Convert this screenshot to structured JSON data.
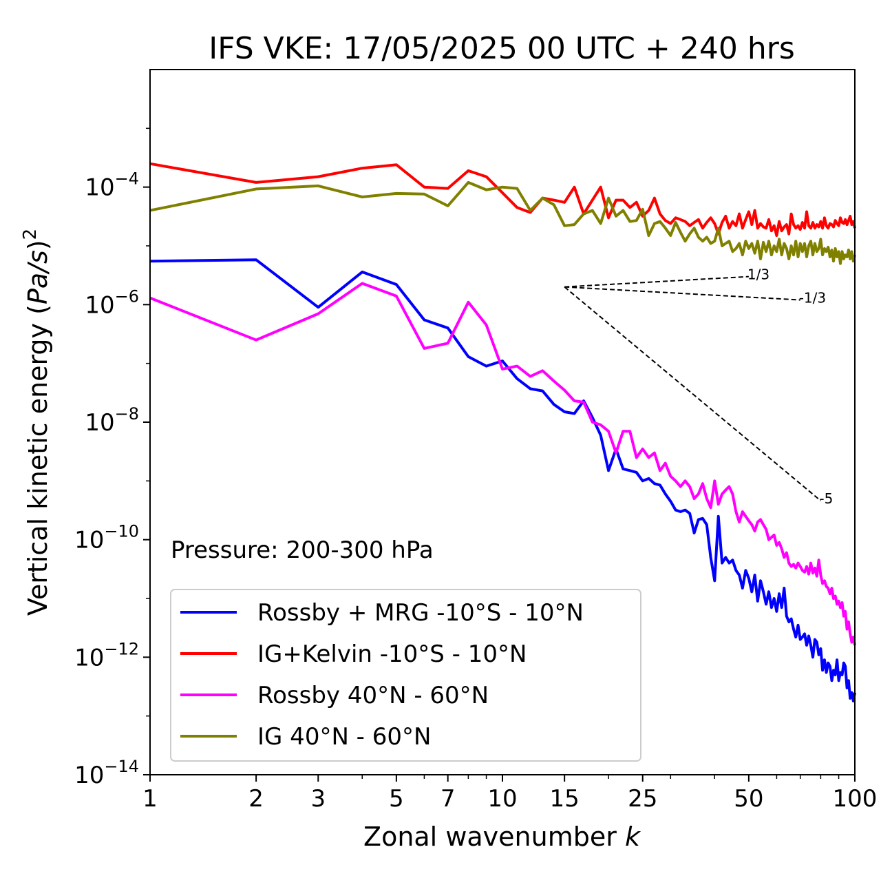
{
  "chart_data": {
    "type": "line",
    "title": "IFS VKE: 17/05/2025 00 UTC + 240 hrs",
    "xlabel": "Zonal wavenumber ",
    "xlabel_var": "k",
    "ylabel_main": "Vertical kinetic energy (",
    "ylabel_var": "Pa/s",
    "ylabel_close": ")",
    "ylabel_exp": "2",
    "x_scale": "log",
    "y_scale": "log",
    "xlim": [
      1,
      100
    ],
    "ylim": [
      1e-14,
      0.01
    ],
    "x_ticks": [
      1,
      2,
      3,
      5,
      7,
      10,
      15,
      25,
      50,
      100
    ],
    "x_tick_labels": [
      "1",
      "2",
      "3",
      "5",
      "7",
      "10",
      "15",
      "25",
      "50",
      "100"
    ],
    "y_ticks": [
      -4,
      -6,
      -8,
      -10,
      -12,
      -14
    ],
    "y_tick_base": "10",
    "y_tick_exps": [
      "−4",
      "−6",
      "−8",
      "−10",
      "−12",
      "−14"
    ],
    "grid": false,
    "legend_position": "bottom-left",
    "annotation": "Pressure: 200-300 hPa",
    "series": [
      {
        "name": "Rossby + MRG -10°S - 10°N",
        "color": "#0000ff",
        "x": [
          1,
          2,
          3,
          4,
          5,
          6,
          7,
          8,
          9,
          10,
          11,
          12,
          13,
          14,
          15,
          16,
          17,
          18,
          19,
          20,
          21,
          22,
          23,
          24,
          25,
          26,
          27,
          28,
          29,
          30,
          31,
          32,
          33,
          34,
          35,
          36,
          37,
          38,
          39,
          40,
          41,
          42,
          43,
          44,
          45,
          46,
          47,
          48,
          49,
          50,
          51,
          52,
          53,
          54,
          55,
          56,
          57,
          58,
          59,
          60,
          61,
          62,
          63,
          64,
          65,
          66,
          67,
          68,
          69,
          70,
          71,
          72,
          73,
          74,
          75,
          76,
          77,
          78,
          79,
          80,
          81,
          82,
          83,
          84,
          85,
          86,
          87,
          88,
          89,
          90,
          91,
          92,
          93,
          94,
          95,
          96,
          97,
          98,
          99,
          100
        ],
        "y": [
          5.5e-06,
          5.8e-06,
          9e-07,
          3.6e-06,
          2.2e-06,
          5.5e-07,
          4e-07,
          1.3e-07,
          9e-08,
          1.1e-07,
          5.5e-08,
          3.7e-08,
          3.4e-08,
          2e-08,
          1.5e-08,
          1.4e-08,
          2.3e-08,
          1.2e-08,
          6e-09,
          1.5e-09,
          3.5e-09,
          1.6e-09,
          1.5e-09,
          1.4e-09,
          1e-09,
          1.1e-09,
          9e-10,
          8.5e-10,
          6e-10,
          4.5e-10,
          3.2e-10,
          3e-10,
          3.2e-10,
          2.8e-10,
          1.3e-10,
          2.2e-10,
          2.3e-10,
          1.8e-10,
          5e-11,
          2e-11,
          2.5e-10,
          4e-11,
          5e-11,
          4e-11,
          4.5e-11,
          3e-11,
          2.5e-11,
          1.5e-11,
          3e-11,
          2.2e-11,
          1.3e-11,
          2.5e-11,
          9e-12,
          2e-11,
          1.3e-11,
          8e-12,
          1.3e-11,
          7e-12,
          1e-11,
          6e-12,
          1.2e-11,
          7e-12,
          1.5e-11,
          5e-12,
          4e-12,
          4.5e-12,
          3e-12,
          2.2e-12,
          3.5e-12,
          2e-12,
          2.2e-12,
          2.5e-12,
          1.6e-12,
          2.3e-12,
          1.6e-12,
          1e-12,
          2e-12,
          1.8e-12,
          1.1e-12,
          1.4e-12,
          6e-13,
          9e-13,
          5.5e-13,
          8e-13,
          7e-13,
          4e-13,
          6e-13,
          5e-13,
          9e-13,
          4e-13,
          5.5e-13,
          5e-13,
          8e-13,
          7e-13,
          3e-13,
          4e-13,
          2e-13,
          2.5e-13,
          1.8e-13,
          2.5e-13
        ]
      },
      {
        "name": "IG+Kelvin -10°S - 10°N",
        "color": "#ff0000",
        "x": [
          1,
          2,
          3,
          4,
          5,
          6,
          7,
          8,
          9,
          10,
          11,
          12,
          13,
          14,
          15,
          16,
          17,
          18,
          19,
          20,
          21,
          22,
          23,
          24,
          25,
          26,
          27,
          28,
          29,
          30,
          31,
          32,
          33,
          34,
          35,
          36,
          37,
          38,
          39,
          40,
          41,
          42,
          43,
          44,
          45,
          46,
          47,
          48,
          49,
          50,
          51,
          52,
          53,
          54,
          55,
          56,
          57,
          58,
          59,
          60,
          61,
          62,
          63,
          64,
          65,
          66,
          67,
          68,
          69,
          70,
          71,
          72,
          73,
          74,
          75,
          76,
          77,
          78,
          79,
          80,
          81,
          82,
          83,
          84,
          85,
          86,
          87,
          88,
          89,
          90,
          91,
          92,
          93,
          94,
          95,
          96,
          97,
          98,
          99,
          100
        ],
        "y": [
          0.00025,
          0.00012,
          0.00015,
          0.00021,
          0.00024,
          0.0001,
          9.5e-05,
          0.00019,
          0.00015,
          8e-05,
          4.5e-05,
          3.7e-05,
          6.5e-05,
          6e-05,
          5.5e-05,
          0.0001,
          3.5e-05,
          6e-05,
          0.0001,
          3e-05,
          6e-05,
          6e-05,
          4.5e-05,
          5.5e-05,
          3.2e-05,
          4e-05,
          6.5e-05,
          3.5e-05,
          2.7e-05,
          2.4e-05,
          3e-05,
          2.8e-05,
          2.6e-05,
          2.2e-05,
          2.5e-05,
          2.8e-05,
          2e-05,
          2.5e-05,
          3e-05,
          2.4e-05,
          1.6e-05,
          2.5e-05,
          3.2e-05,
          2e-05,
          2.6e-05,
          2.2e-05,
          3.5e-05,
          2e-05,
          2.8e-05,
          3.8e-05,
          2.3e-05,
          4e-05,
          2e-05,
          2.4e-05,
          2.1e-05,
          2e-05,
          2.8e-05,
          1.8e-05,
          2.2e-05,
          1.5e-05,
          2.6e-05,
          1.8e-05,
          2.1e-05,
          2.3e-05,
          1.6e-05,
          3.5e-05,
          2.3e-05,
          2e-05,
          2.2e-05,
          1.9e-05,
          2.5e-05,
          2e-05,
          3.8e-05,
          2.2e-05,
          2e-05,
          2.5e-05,
          2e-05,
          2.3e-05,
          2.1e-05,
          2.6e-05,
          2e-05,
          3e-05,
          2.2e-05,
          2e-05,
          2.4e-05,
          2.3e-05,
          2.1e-05,
          2.7e-05,
          2.4e-05,
          2.2e-05,
          3e-05,
          2.5e-05,
          2.4e-05,
          2.8e-05,
          2.3e-05,
          2.7e-05,
          3.2e-05,
          2.3e-05,
          2.6e-05,
          2e-05
        ]
      },
      {
        "name": "Rossby 40°N - 60°N",
        "color": "#ff00ff",
        "x": [
          1,
          2,
          3,
          4,
          5,
          6,
          7,
          8,
          9,
          10,
          11,
          12,
          13,
          14,
          15,
          16,
          17,
          18,
          19,
          20,
          21,
          22,
          23,
          24,
          25,
          26,
          27,
          28,
          29,
          30,
          31,
          32,
          33,
          34,
          35,
          36,
          37,
          38,
          39,
          40,
          41,
          42,
          43,
          44,
          45,
          46,
          47,
          48,
          49,
          50,
          51,
          52,
          53,
          54,
          55,
          56,
          57,
          58,
          59,
          60,
          61,
          62,
          63,
          64,
          65,
          66,
          67,
          68,
          69,
          70,
          71,
          72,
          73,
          74,
          75,
          76,
          77,
          78,
          79,
          80,
          81,
          82,
          83,
          84,
          85,
          86,
          87,
          88,
          89,
          90,
          91,
          92,
          93,
          94,
          95,
          96,
          97,
          98,
          99,
          100
        ],
        "y": [
          1.3e-06,
          2.5e-07,
          7e-07,
          2.3e-06,
          1.4e-06,
          1.8e-07,
          2.2e-07,
          1.1e-06,
          4.5e-07,
          8e-08,
          9e-08,
          6e-08,
          7.5e-08,
          5e-08,
          3.5e-08,
          2.3e-08,
          2.2e-08,
          1e-08,
          9e-09,
          7e-09,
          3e-09,
          7e-09,
          7e-09,
          2.5e-09,
          3.5e-09,
          2.5e-09,
          3e-09,
          1.5e-09,
          2e-09,
          1.2e-09,
          1e-09,
          8e-10,
          1e-09,
          8e-10,
          5e-10,
          6e-10,
          9e-10,
          5e-10,
          3.5e-10,
          1e-09,
          4e-10,
          6e-10,
          7e-10,
          8e-10,
          6e-10,
          3e-10,
          2e-10,
          3e-10,
          2.5e-10,
          2.1e-10,
          1.8e-10,
          1.4e-10,
          2e-10,
          2.2e-10,
          1.8e-10,
          1.5e-10,
          1e-10,
          1.1e-10,
          1.2e-10,
          8e-11,
          9e-11,
          7e-11,
          5e-11,
          6e-11,
          4e-11,
          3.5e-11,
          3.8e-11,
          3.3e-11,
          4e-11,
          3.5e-11,
          3e-11,
          2.8e-11,
          3.5e-11,
          2.6e-11,
          4e-11,
          2.7e-11,
          3.3e-11,
          2.4e-11,
          4.5e-11,
          2.5e-11,
          1.8e-11,
          2e-11,
          1.6e-11,
          1.5e-11,
          1.2e-11,
          1.5e-11,
          1e-11,
          1.1e-11,
          8e-12,
          9e-12,
          7e-12,
          8.5e-12,
          5e-12,
          6e-12,
          3e-12,
          4e-12,
          2.5e-12,
          1.8e-12,
          2.2e-12,
          1.6e-12
        ]
      },
      {
        "name": "IG 40°N - 60°N",
        "color": "#808000",
        "x": [
          1,
          2,
          3,
          4,
          5,
          6,
          7,
          8,
          9,
          10,
          11,
          12,
          13,
          14,
          15,
          16,
          17,
          18,
          19,
          20,
          21,
          22,
          23,
          24,
          25,
          26,
          27,
          28,
          29,
          30,
          31,
          32,
          33,
          34,
          35,
          36,
          37,
          38,
          39,
          40,
          41,
          42,
          43,
          44,
          45,
          46,
          47,
          48,
          49,
          50,
          51,
          52,
          53,
          54,
          55,
          56,
          57,
          58,
          59,
          60,
          61,
          62,
          63,
          64,
          65,
          66,
          67,
          68,
          69,
          70,
          71,
          72,
          73,
          74,
          75,
          76,
          77,
          78,
          79,
          80,
          81,
          82,
          83,
          84,
          85,
          86,
          87,
          88,
          89,
          90,
          91,
          92,
          93,
          94,
          95,
          96,
          97,
          98,
          99,
          100
        ],
        "y": [
          4e-05,
          9.3e-05,
          0.000105,
          6.8e-05,
          7.8e-05,
          7.6e-05,
          4.8e-05,
          0.00012,
          9e-05,
          0.0001,
          9.5e-05,
          4e-05,
          6.5e-05,
          5e-05,
          2.2e-05,
          2.3e-05,
          3.5e-05,
          4e-05,
          2.4e-05,
          6.5e-05,
          3.2e-05,
          4e-05,
          2.6e-05,
          2.7e-05,
          4.2e-05,
          1.5e-05,
          2.4e-05,
          2.6e-05,
          2e-05,
          1.5e-05,
          2.5e-05,
          1.7e-05,
          1.2e-05,
          1.6e-05,
          2e-05,
          1.4e-05,
          1.2e-05,
          1.4e-05,
          1.1e-05,
          1.2e-05,
          2e-05,
          1e-05,
          1.1e-05,
          1.2e-05,
          8e-06,
          9e-06,
          1.1e-05,
          7e-06,
          1.2e-05,
          9e-06,
          1.1e-05,
          7.5e-06,
          1.2e-05,
          6e-06,
          1.15e-05,
          8e-06,
          1.2e-05,
          7e-06,
          1e-05,
          8e-06,
          1.3e-05,
          7e-06,
          1.1e-05,
          9e-06,
          6e-06,
          1e-05,
          7e-06,
          1.2e-05,
          6.5e-06,
          1.1e-05,
          8e-06,
          1.1e-05,
          6.5e-06,
          1e-05,
          1.2e-05,
          7e-06,
          1.1e-05,
          8e-06,
          9e-06,
          1.3e-05,
          7e-06,
          9e-06,
          8e-06,
          9.5e-06,
          6.5e-06,
          8.5e-06,
          5.5e-06,
          9e-06,
          6.5e-06,
          8e-06,
          5e-06,
          8e-06,
          6e-06,
          7e-06,
          6.5e-06,
          8.5e-06,
          6e-06,
          8e-06,
          5.5e-06,
          7e-06
        ]
      }
    ],
    "reference_slopes": [
      {
        "label": "1/3",
        "x": [
          15,
          50
        ],
        "y": [
          2e-06,
          3e-06
        ]
      },
      {
        "label": "-1/3",
        "x": [
          15,
          70
        ],
        "y": [
          2e-06,
          1.2e-06
        ]
      },
      {
        "label": "-5",
        "x": [
          15,
          80
        ],
        "y": [
          2e-06,
          4.6e-10
        ]
      }
    ]
  }
}
